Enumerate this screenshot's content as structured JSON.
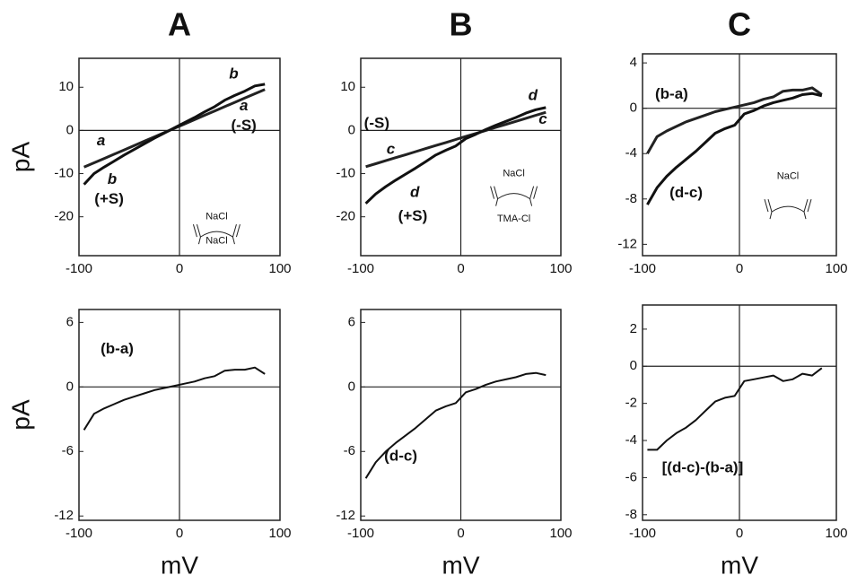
{
  "chart_data": [
    {
      "type": "line",
      "title": "A",
      "ylabel": "pA",
      "x": [
        -95,
        -85,
        -75,
        -65,
        -55,
        -45,
        -35,
        -25,
        -15,
        -5,
        5,
        15,
        25,
        35,
        45,
        55,
        65,
        75,
        85
      ],
      "series": [
        {
          "name": "a",
          "color": "#222222",
          "values": [
            -8.5,
            -7.5,
            -6.5,
            -5.5,
            -4.5,
            -3.5,
            -2.5,
            -1.5,
            -0.5,
            0.5,
            1.5,
            2.5,
            3.5,
            4.5,
            5.5,
            6.5,
            7.5,
            8.5,
            9.5
          ]
        },
        {
          "name": "b",
          "color": "#111111",
          "values": [
            -12.5,
            -10,
            -8.5,
            -7.1,
            -5.7,
            -4.4,
            -3.1,
            -1.8,
            -0.6,
            0.6,
            1.8,
            3.0,
            4.3,
            5.5,
            7.0,
            8.1,
            9.1,
            10.3,
            10.7
          ]
        }
      ],
      "xlim": [
        -100,
        100
      ],
      "ylim": [
        -29,
        16.7
      ],
      "xticks": [
        -100,
        0,
        100
      ],
      "yticks": [
        -20,
        -10,
        0,
        10
      ],
      "annotations": [
        "a",
        "b",
        "(+S)",
        "b",
        "a",
        "(-S)",
        "NaCl",
        "NaCl"
      ]
    },
    {
      "type": "line",
      "title": "B",
      "x": [
        -95,
        -85,
        -75,
        -65,
        -55,
        -45,
        -35,
        -25,
        -15,
        -5,
        5,
        15,
        25,
        35,
        45,
        55,
        65,
        75,
        85
      ],
      "series": [
        {
          "name": "c",
          "color": "#222222",
          "values": [
            -8.4,
            -7.7,
            -7.0,
            -6.3,
            -5.6,
            -4.9,
            -4.2,
            -3.5,
            -2.8,
            -2.1,
            -1.4,
            -0.7,
            0,
            0.7,
            1.4,
            2.1,
            2.8,
            3.5,
            4.2
          ]
        },
        {
          "name": "d",
          "color": "#111111",
          "values": [
            -16.9,
            -14.7,
            -13,
            -11.5,
            -10.1,
            -8.7,
            -7.2,
            -5.7,
            -4.6,
            -3.6,
            -1.9,
            -0.9,
            0.2,
            1.2,
            2.1,
            3.0,
            4.0,
            4.8,
            5.3
          ]
        }
      ],
      "xlim": [
        -100,
        100
      ],
      "ylim": [
        -29,
        16.7
      ],
      "xticks": [
        -100,
        0,
        100
      ],
      "yticks": [
        -20,
        -10,
        0,
        10
      ],
      "annotations": [
        "(-S)",
        "c",
        "d",
        "(+S)",
        "d",
        "c",
        "NaCl",
        "TMA-Cl"
      ]
    },
    {
      "type": "line",
      "title": "C",
      "x": [
        -95,
        -85,
        -75,
        -65,
        -55,
        -45,
        -35,
        -25,
        -15,
        -5,
        5,
        15,
        25,
        35,
        45,
        55,
        65,
        75,
        85
      ],
      "series": [
        {
          "name": "(b-a)",
          "color": "#222222",
          "values": [
            -4,
            -2.5,
            -2,
            -1.6,
            -1.2,
            -0.9,
            -0.6,
            -0.3,
            -0.1,
            0.1,
            0.3,
            0.5,
            0.8,
            1.0,
            1.5,
            1.6,
            1.6,
            1.8,
            1.2
          ]
        },
        {
          "name": "(d-c)",
          "color": "#111111",
          "values": [
            -8.5,
            -7,
            -6,
            -5.2,
            -4.5,
            -3.8,
            -3,
            -2.2,
            -1.8,
            -1.5,
            -0.5,
            -0.2,
            0.2,
            0.5,
            0.7,
            0.9,
            1.2,
            1.3,
            1.1
          ]
        }
      ],
      "xlim": [
        -100,
        100
      ],
      "ylim": [
        -13,
        4.8
      ],
      "xticks": [
        -100,
        0,
        100
      ],
      "yticks": [
        -12,
        -8,
        -4,
        0,
        4
      ],
      "annotations": [
        "(b-a)",
        "(d-c)",
        "NaCl"
      ]
    },
    {
      "type": "line",
      "ylabel": "pA",
      "xlabel": "mV",
      "x": [
        -95,
        -85,
        -75,
        -65,
        -55,
        -45,
        -35,
        -25,
        -15,
        -5,
        5,
        15,
        25,
        35,
        45,
        55,
        65,
        75,
        85
      ],
      "series": [
        {
          "name": "(b-a)",
          "color": "#111111",
          "values": [
            -4,
            -2.5,
            -2,
            -1.6,
            -1.2,
            -0.9,
            -0.6,
            -0.3,
            -0.1,
            0.1,
            0.3,
            0.5,
            0.8,
            1.0,
            1.5,
            1.6,
            1.6,
            1.8,
            1.2
          ]
        }
      ],
      "xlim": [
        -100,
        100
      ],
      "ylim": [
        -12.4,
        7.2
      ],
      "xticks": [
        -100,
        0,
        100
      ],
      "yticks": [
        -12,
        -6,
        0,
        6
      ],
      "annotations": [
        "(b-a)"
      ]
    },
    {
      "type": "line",
      "xlabel": "mV",
      "x": [
        -95,
        -85,
        -75,
        -65,
        -55,
        -45,
        -35,
        -25,
        -15,
        -5,
        5,
        15,
        25,
        35,
        45,
        55,
        65,
        75,
        85
      ],
      "series": [
        {
          "name": "(d-c)",
          "color": "#111111",
          "values": [
            -8.5,
            -7,
            -6,
            -5.2,
            -4.5,
            -3.8,
            -3,
            -2.2,
            -1.8,
            -1.5,
            -0.5,
            -0.2,
            0.2,
            0.5,
            0.7,
            0.9,
            1.2,
            1.3,
            1.1
          ]
        }
      ],
      "xlim": [
        -100,
        100
      ],
      "ylim": [
        -12.4,
        7.2
      ],
      "xticks": [
        -100,
        0,
        100
      ],
      "yticks": [
        -12,
        -6,
        0,
        6
      ],
      "annotations": [
        "(d-c)"
      ]
    },
    {
      "type": "line",
      "xlabel": "mV",
      "x": [
        -95,
        -85,
        -75,
        -65,
        -55,
        -45,
        -35,
        -25,
        -15,
        -5,
        5,
        15,
        25,
        35,
        45,
        55,
        65,
        75,
        85
      ],
      "series": [
        {
          "name": "[(d-c)-(b-a)]",
          "color": "#111111",
          "values": [
            -4.5,
            -4.5,
            -4,
            -3.6,
            -3.3,
            -2.9,
            -2.4,
            -1.9,
            -1.7,
            -1.6,
            -0.8,
            -0.7,
            -0.6,
            -0.5,
            -0.8,
            -0.7,
            -0.4,
            -0.5,
            -0.1
          ]
        }
      ],
      "xlim": [
        -100,
        100
      ],
      "ylim": [
        -8.3,
        3.3
      ],
      "xticks": [
        -100,
        0,
        100
      ],
      "yticks": [
        -8,
        -6,
        -4,
        -2,
        0,
        2
      ],
      "annotations": [
        "[(d-c)-(b-a)]"
      ]
    }
  ]
}
